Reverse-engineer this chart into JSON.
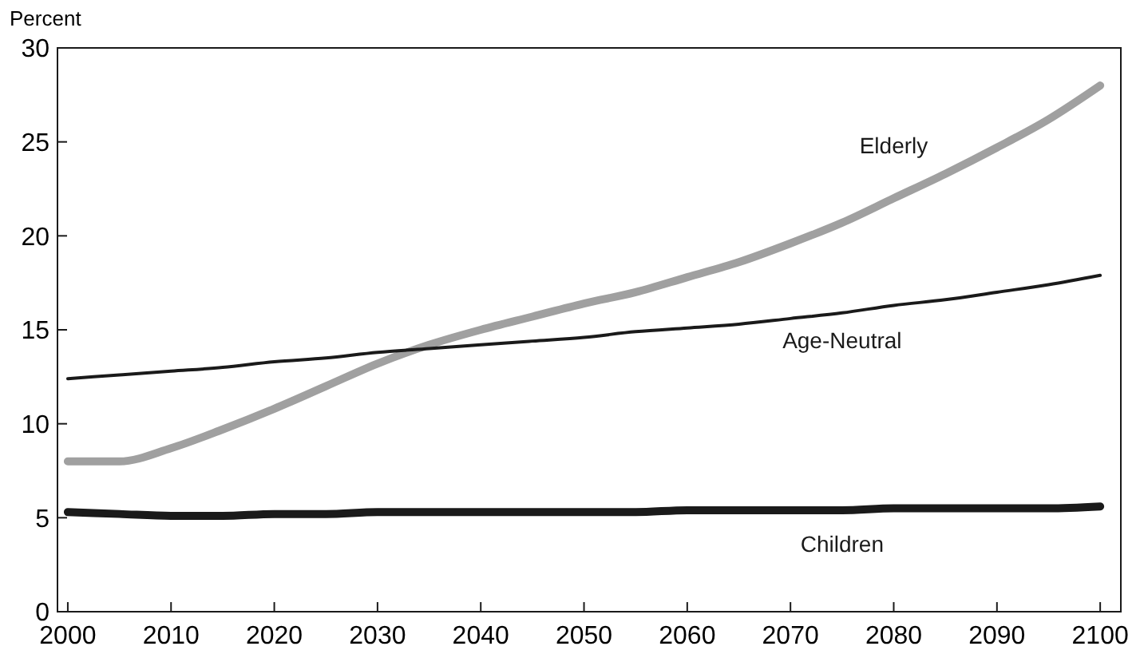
{
  "chart_data": {
    "type": "line",
    "ylabel": "Percent",
    "x": [
      2000,
      2005,
      2010,
      2015,
      2020,
      2025,
      2030,
      2035,
      2040,
      2045,
      2050,
      2055,
      2060,
      2065,
      2070,
      2075,
      2080,
      2085,
      2090,
      2095,
      2100
    ],
    "series": [
      {
        "name": "Elderly",
        "color": "#a0a0a0",
        "values": [
          8.0,
          8.0,
          8.7,
          9.7,
          10.8,
          12.0,
          13.2,
          14.2,
          15.0,
          15.7,
          16.4,
          17.0,
          17.8,
          18.6,
          19.6,
          20.7,
          22.0,
          23.3,
          24.7,
          26.2,
          28.0
        ]
      },
      {
        "name": "Age-Neutral",
        "color": "#1a1a1a",
        "values": [
          12.4,
          12.6,
          12.8,
          13.0,
          13.3,
          13.5,
          13.8,
          14.0,
          14.2,
          14.4,
          14.6,
          14.9,
          15.1,
          15.3,
          15.6,
          15.9,
          16.3,
          16.6,
          17.0,
          17.4,
          17.9
        ]
      },
      {
        "name": "Children",
        "color": "#1a1a1a",
        "values": [
          5.3,
          5.2,
          5.1,
          5.1,
          5.2,
          5.2,
          5.3,
          5.3,
          5.3,
          5.3,
          5.3,
          5.3,
          5.4,
          5.4,
          5.4,
          5.4,
          5.5,
          5.5,
          5.5,
          5.5,
          5.6
        ]
      }
    ],
    "xlim": [
      1999,
      2102
    ],
    "xticks": [
      2000,
      2010,
      2020,
      2030,
      2040,
      2050,
      2060,
      2070,
      2080,
      2090,
      2100
    ],
    "ylim": [
      0,
      30
    ],
    "yticks": [
      0,
      5,
      10,
      15,
      20,
      25,
      30
    ],
    "grid": false,
    "marker": "none",
    "line_style": "solid"
  }
}
